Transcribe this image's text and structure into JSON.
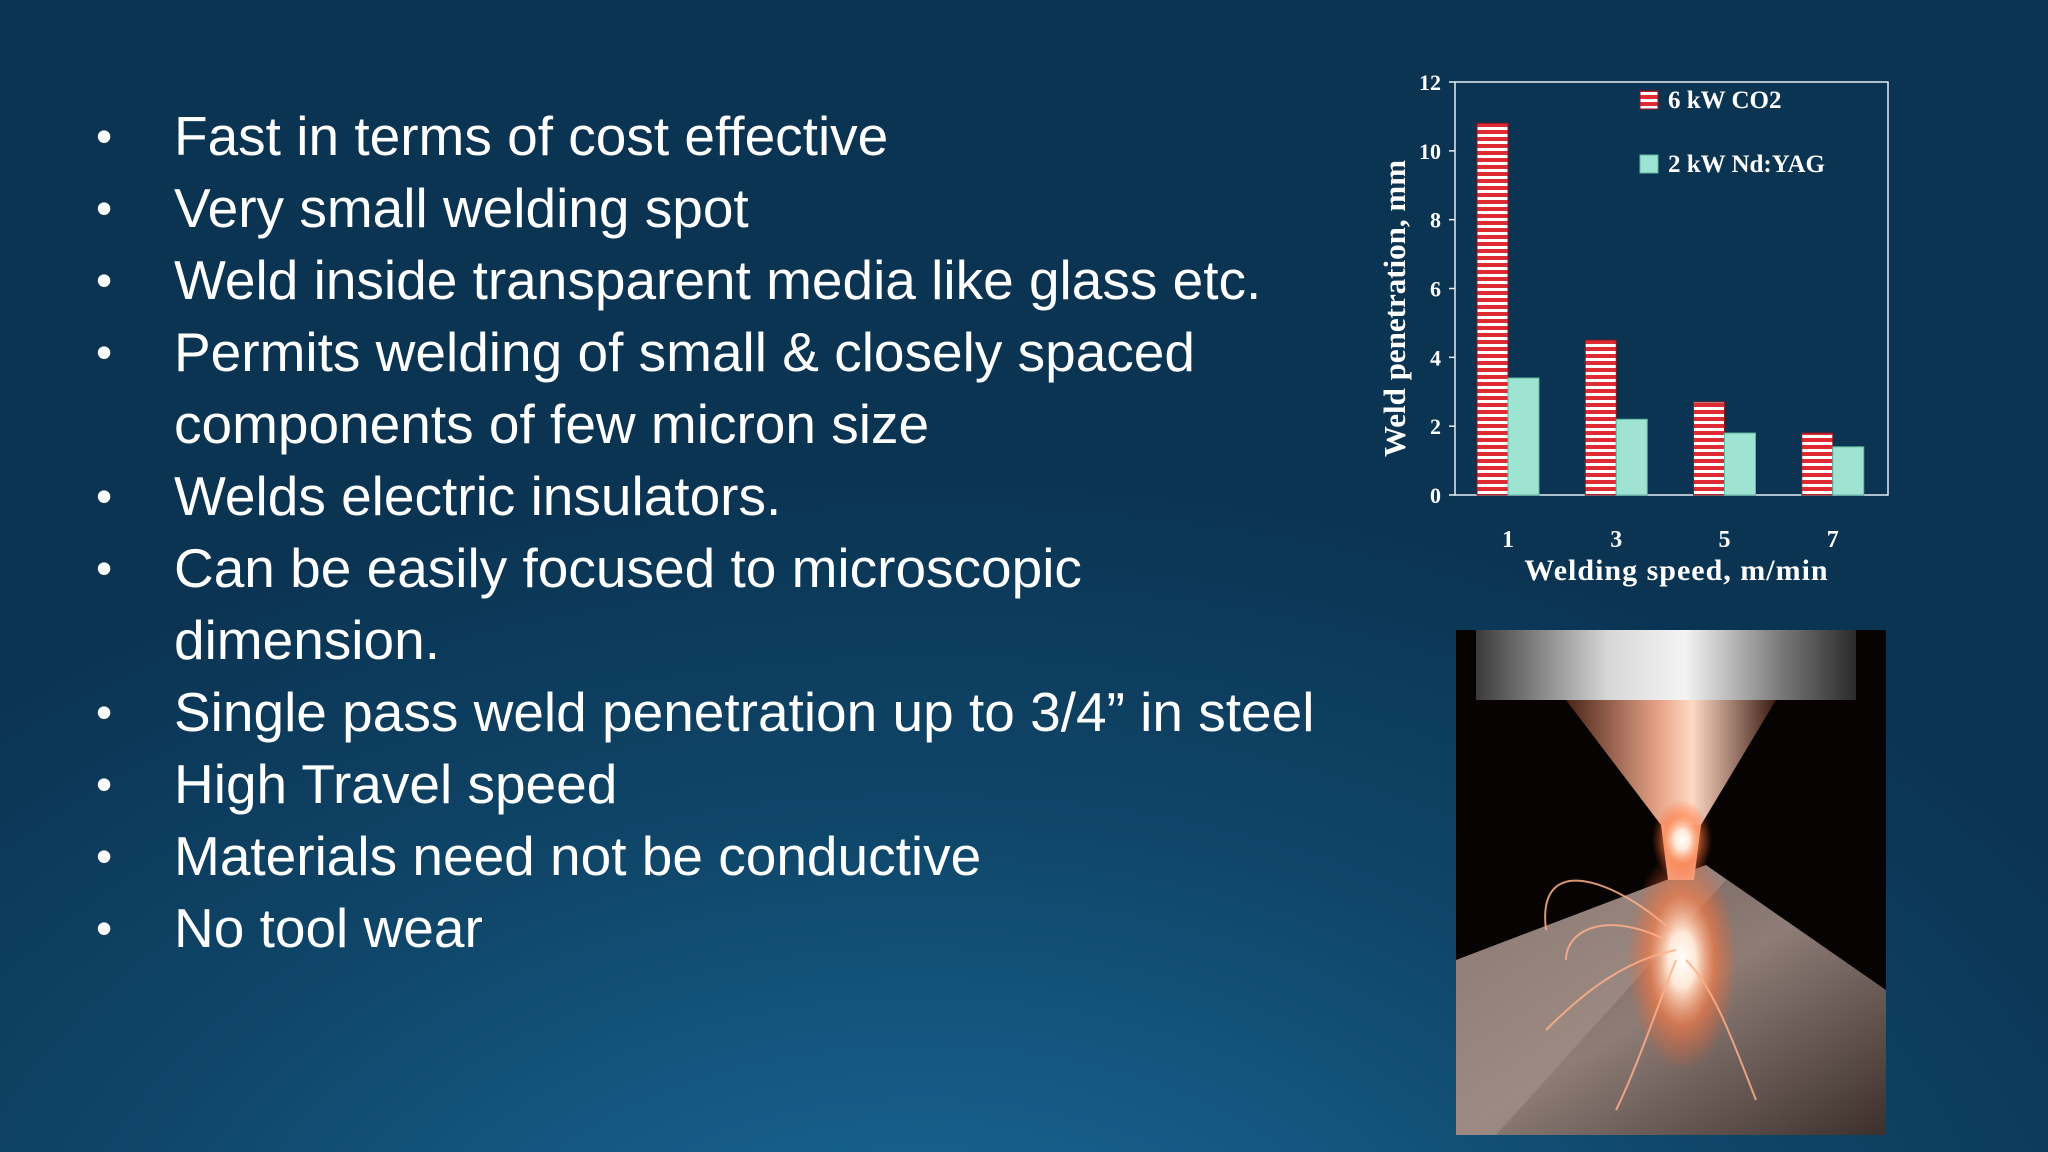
{
  "bullets": [
    "Fast in terms of cost effective",
    "Very small welding spot",
    "Weld inside transparent media like glass etc.",
    "Permits welding of small & closely spaced components of few micron size",
    "Welds electric insulators.",
    "Can be easily focused to microscopic dimension.",
    "Single pass weld penetration up to 3/4” in steel",
    "High Travel speed",
    "Materials need not be conductive",
    "No tool wear"
  ],
  "bullet_symbol": "•",
  "chart_data": {
    "type": "bar",
    "categories": [
      "1",
      "3",
      "5",
      "7"
    ],
    "series": [
      {
        "name": "6 kW CO2",
        "values": [
          10.8,
          4.5,
          2.7,
          1.8
        ],
        "color": "#e02a33",
        "pattern": "horizontal-stripes"
      },
      {
        "name": "2 kW Nd:YAG",
        "values": [
          3.4,
          2.2,
          1.8,
          1.4
        ],
        "color": "#9fe3d2"
      }
    ],
    "xlabel": "Welding speed, m/min",
    "ylabel": "Weld penetration, mm",
    "ylim": [
      0,
      12
    ],
    "yticks": [
      "0",
      "2",
      "4",
      "6",
      "8",
      "10",
      "12"
    ],
    "grid": false,
    "legend_position": "top-right"
  },
  "photo": {
    "subject": "laser welding nozzle with sparks",
    "icon": "laser-welding-photo"
  },
  "colors": {
    "background": "#0f4669",
    "text": "#ffffff",
    "chart_bg": "#0e4466"
  }
}
